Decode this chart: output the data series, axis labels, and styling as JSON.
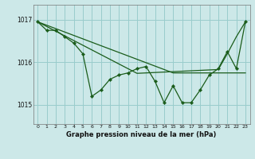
{
  "bg_color": "#cce8e8",
  "grid_color": "#99cccc",
  "line_color": "#1a5c1a",
  "title": "Graphe pression niveau de la mer (hPa)",
  "ylim": [
    1014.55,
    1017.35
  ],
  "xlim": [
    -0.5,
    23.5
  ],
  "yticks": [
    1015,
    1016,
    1017
  ],
  "xticks": [
    0,
    1,
    2,
    3,
    4,
    5,
    6,
    7,
    8,
    9,
    10,
    11,
    12,
    13,
    14,
    15,
    16,
    17,
    18,
    19,
    20,
    21,
    22,
    23
  ],
  "hourly": [
    1016.95,
    1016.75,
    1016.75,
    1016.6,
    1016.45,
    1016.2,
    1015.2,
    1015.35,
    1015.6,
    1015.7,
    1015.75,
    1015.85,
    1015.9,
    1015.55,
    1015.05,
    1015.45,
    1015.05,
    1015.05,
    1015.35,
    1015.7,
    1015.85,
    1016.25,
    1015.85,
    1016.95
  ],
  "trend_straight": [
    1016.95,
    1016.87,
    1016.79,
    1016.71,
    1016.63,
    1016.55,
    1016.47,
    1016.39,
    1016.31,
    1016.23,
    1016.15,
    1016.07,
    1015.99,
    1015.91,
    1015.83,
    1015.75,
    1015.75,
    1015.75,
    1015.75,
    1015.75,
    1015.75,
    1015.75,
    1015.75,
    1015.75
  ],
  "trend_vshaped": [
    1016.95,
    1016.84,
    1016.73,
    1016.62,
    1016.51,
    1016.4,
    1016.29,
    1016.18,
    1016.07,
    1015.96,
    1015.85,
    1015.74,
    1015.75,
    1015.76,
    1015.77,
    1015.78,
    1015.79,
    1015.8,
    1015.81,
    1015.82,
    1015.83,
    1016.2,
    1016.6,
    1016.95
  ]
}
